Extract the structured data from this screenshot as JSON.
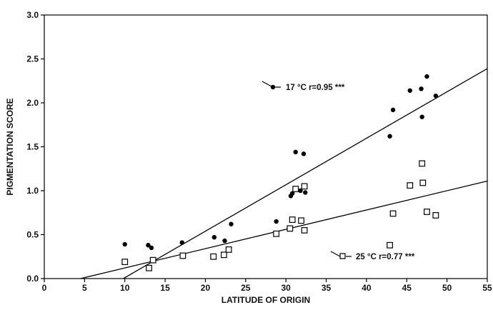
{
  "chart_data": {
    "type": "scatter",
    "title": "",
    "xlabel": "LATITUDE OF ORIGIN",
    "ylabel": "PIGMENTATION SCORE",
    "xlim": [
      0,
      55
    ],
    "ylim": [
      0,
      3.0
    ],
    "x_ticks": [
      "0",
      "5",
      "10",
      "15",
      "20",
      "25",
      "30",
      "35",
      "40",
      "45",
      "50",
      "55"
    ],
    "y_ticks": [
      "0.0",
      "0.5",
      "1.0",
      "1.5",
      "2.0",
      "2.5",
      "3.0"
    ],
    "grid": false,
    "series": [
      {
        "name": "17 °C r=0.95 ***",
        "marker": "filled-circle",
        "color": "#000000",
        "points": [
          [
            10.0,
            0.39
          ],
          [
            12.9,
            0.38
          ],
          [
            13.3,
            0.35
          ],
          [
            17.1,
            0.41
          ],
          [
            21.1,
            0.47
          ],
          [
            22.4,
            0.43
          ],
          [
            23.2,
            0.62
          ],
          [
            28.8,
            0.65
          ],
          [
            30.6,
            0.94
          ],
          [
            30.8,
            0.97
          ],
          [
            31.2,
            1.44
          ],
          [
            31.8,
            1.0
          ],
          [
            32.2,
            1.42
          ],
          [
            32.4,
            0.98
          ],
          [
            42.9,
            1.62
          ],
          [
            43.3,
            1.92
          ],
          [
            45.4,
            2.14
          ],
          [
            46.8,
            2.16
          ],
          [
            46.9,
            1.84
          ],
          [
            47.5,
            2.3
          ],
          [
            48.6,
            2.08
          ]
        ],
        "fit_line": [
          [
            9.8,
            0.0
          ],
          [
            55.0,
            2.39
          ]
        ]
      },
      {
        "name": "25 °C r=0.77 ***",
        "marker": "open-square",
        "color": "#000000",
        "points": [
          [
            10.0,
            0.19
          ],
          [
            13.0,
            0.12
          ],
          [
            13.5,
            0.21
          ],
          [
            17.2,
            0.26
          ],
          [
            21.0,
            0.25
          ],
          [
            22.3,
            0.27
          ],
          [
            22.9,
            0.33
          ],
          [
            28.8,
            0.51
          ],
          [
            30.5,
            0.57
          ],
          [
            30.8,
            0.67
          ],
          [
            31.2,
            1.02
          ],
          [
            31.9,
            0.66
          ],
          [
            32.3,
            1.05
          ],
          [
            32.3,
            0.55
          ],
          [
            42.9,
            0.38
          ],
          [
            43.3,
            0.74
          ],
          [
            45.4,
            1.06
          ],
          [
            46.9,
            1.31
          ],
          [
            47.0,
            1.09
          ],
          [
            47.5,
            0.76
          ],
          [
            48.6,
            0.72
          ]
        ],
        "fit_line": [
          [
            4.5,
            0.0
          ],
          [
            55.0,
            1.11
          ]
        ]
      }
    ]
  }
}
